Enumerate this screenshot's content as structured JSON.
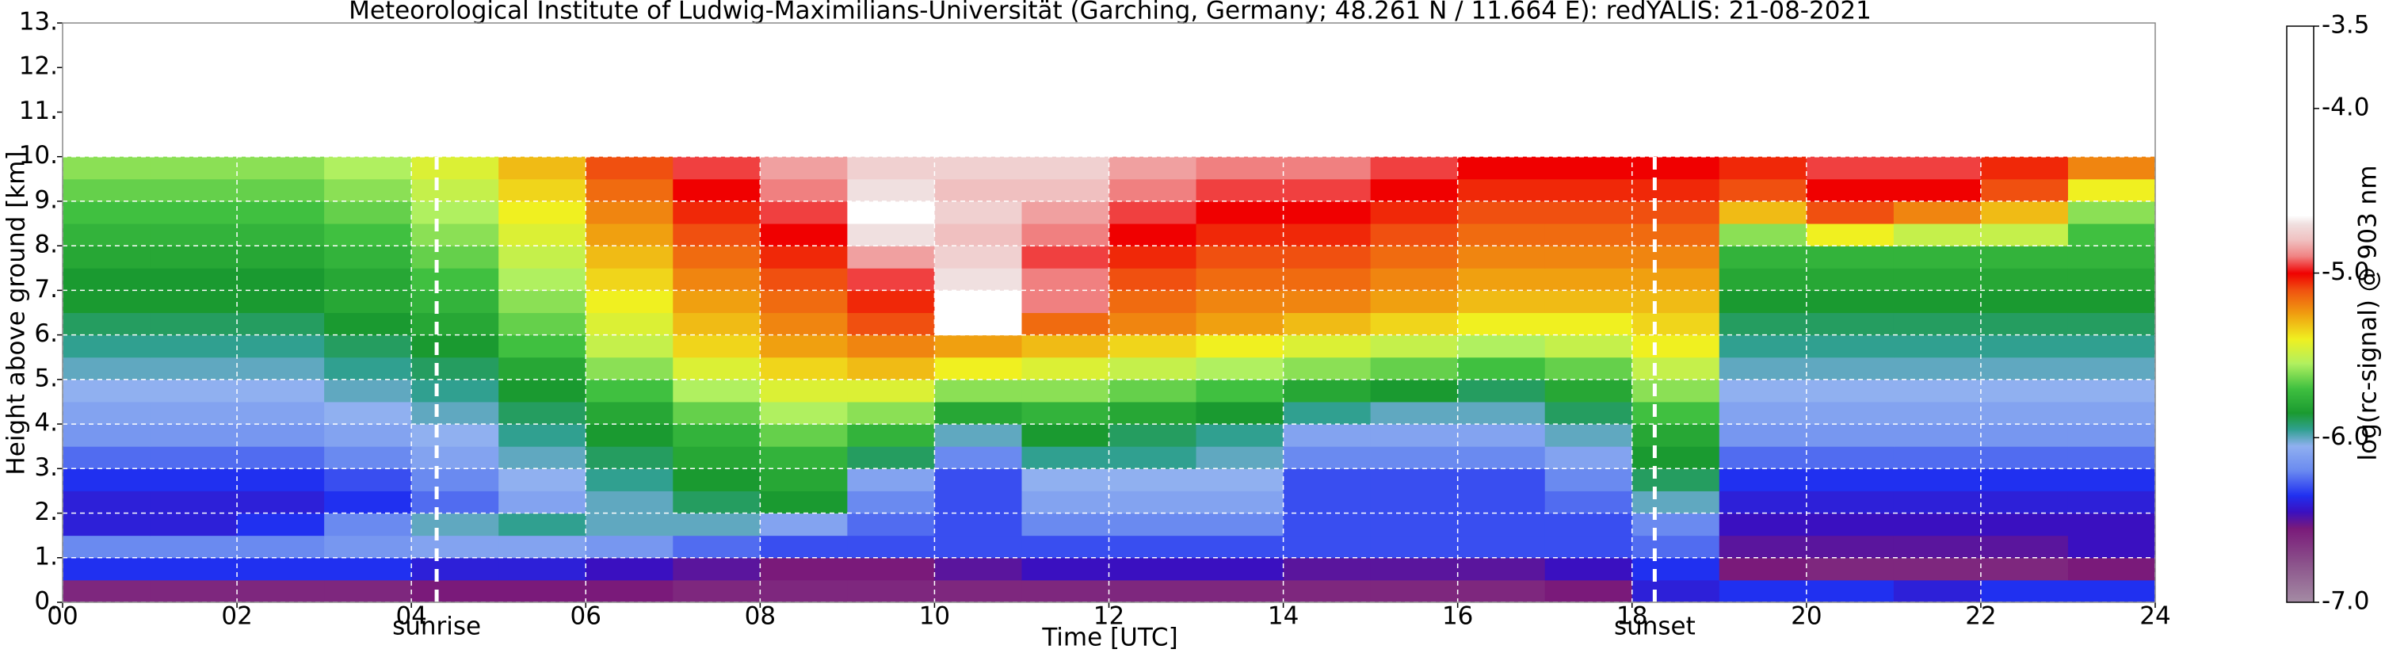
{
  "chart_data": {
    "type": "heatmap",
    "title": "Meteorological Institute of Ludwig-Maximilians-Universität (Garching, Germany; 48.261 N / 11.664 E):    redYALIS: 21-08-2021",
    "xlabel": "Time [UTC]",
    "ylabel": "Height above ground [km]",
    "xlim": [
      0,
      24
    ],
    "ylim": [
      0,
      13
    ],
    "xticks": [
      {
        "value": 0,
        "label": "00"
      },
      {
        "value": 2,
        "label": "02"
      },
      {
        "value": 4,
        "label": "04"
      },
      {
        "value": 6,
        "label": "06"
      },
      {
        "value": 8,
        "label": "08"
      },
      {
        "value": 10,
        "label": "10"
      },
      {
        "value": 12,
        "label": "12"
      },
      {
        "value": 14,
        "label": "14"
      },
      {
        "value": 16,
        "label": "16"
      },
      {
        "value": 18,
        "label": "18"
      },
      {
        "value": 20,
        "label": "20"
      },
      {
        "value": 22,
        "label": "22"
      },
      {
        "value": 24,
        "label": "24"
      }
    ],
    "yticks": [
      {
        "value": 0,
        "label": "0."
      },
      {
        "value": 1,
        "label": "1."
      },
      {
        "value": 2,
        "label": "2."
      },
      {
        "value": 3,
        "label": "3."
      },
      {
        "value": 4,
        "label": "4."
      },
      {
        "value": 5,
        "label": "5."
      },
      {
        "value": 6,
        "label": "6."
      },
      {
        "value": 7,
        "label": "7."
      },
      {
        "value": 8,
        "label": "8."
      },
      {
        "value": 9,
        "label": "9."
      },
      {
        "value": 10,
        "label": "10."
      },
      {
        "value": 11,
        "label": "11."
      },
      {
        "value": 12,
        "label": "12."
      },
      {
        "value": 13,
        "label": "13."
      }
    ],
    "grid": true,
    "annotations": [
      {
        "text": "sunrise",
        "x": 4.29
      },
      {
        "text": "sunset",
        "x": 18.26
      }
    ],
    "xbins": [
      0,
      1,
      2,
      3,
      4,
      5,
      6,
      7,
      8,
      9,
      10,
      11,
      12,
      13,
      14,
      15,
      16,
      17,
      18,
      19,
      20,
      21,
      22,
      23,
      24
    ],
    "ybins": [
      0,
      0.5,
      1,
      1.5,
      2,
      2.5,
      3,
      3.5,
      4,
      4.5,
      5,
      5.5,
      6,
      6.5,
      7,
      7.5,
      8,
      8.5,
      9,
      9.5,
      10
    ],
    "z": [
      [
        -6.6,
        -6.6,
        -6.6,
        -6.6,
        -6.55,
        -6.55,
        -6.55,
        -6.6,
        -6.6,
        -6.6,
        -6.6,
        -6.6,
        -6.6,
        -6.6,
        -6.6,
        -6.6,
        -6.6,
        -6.55,
        -6.4,
        -6.35,
        -6.35,
        -6.4,
        -6.35,
        -6.35
      ],
      [
        -6.35,
        -6.35,
        -6.35,
        -6.35,
        -6.4,
        -6.4,
        -6.45,
        -6.5,
        -6.55,
        -6.55,
        -6.5,
        -6.45,
        -6.45,
        -6.45,
        -6.5,
        -6.5,
        -6.5,
        -6.45,
        -6.35,
        -6.55,
        -6.6,
        -6.6,
        -6.6,
        -6.55
      ],
      [
        -6.2,
        -6.2,
        -6.2,
        -6.15,
        -6.1,
        -6.1,
        -6.15,
        -6.25,
        -6.3,
        -6.3,
        -6.3,
        -6.3,
        -6.3,
        -6.3,
        -6.3,
        -6.3,
        -6.3,
        -6.3,
        -6.25,
        -6.5,
        -6.5,
        -6.5,
        -6.5,
        -6.45
      ],
      [
        -6.4,
        -6.4,
        -6.35,
        -6.2,
        -6.0,
        -5.95,
        -6.0,
        -6.0,
        -6.1,
        -6.25,
        -6.3,
        -6.2,
        -6.2,
        -6.2,
        -6.3,
        -6.3,
        -6.3,
        -6.3,
        -6.2,
        -6.45,
        -6.45,
        -6.45,
        -6.45,
        -6.45
      ],
      [
        -6.4,
        -6.4,
        -6.4,
        -6.35,
        -6.25,
        -6.1,
        -6.0,
        -5.9,
        -5.85,
        -6.2,
        -6.3,
        -6.1,
        -6.1,
        -6.1,
        -6.3,
        -6.3,
        -6.3,
        -6.25,
        -6.0,
        -6.4,
        -6.4,
        -6.4,
        -6.4,
        -6.4
      ],
      [
        -6.35,
        -6.35,
        -6.35,
        -6.3,
        -6.2,
        -6.05,
        -5.95,
        -5.85,
        -5.8,
        -6.1,
        -6.3,
        -6.05,
        -6.05,
        -6.05,
        -6.3,
        -6.3,
        -6.3,
        -6.2,
        -5.9,
        -6.35,
        -6.35,
        -6.35,
        -6.35,
        -6.35
      ],
      [
        -6.25,
        -6.25,
        -6.25,
        -6.2,
        -6.1,
        -6.0,
        -5.9,
        -5.8,
        -5.75,
        -5.9,
        -6.2,
        -5.95,
        -5.95,
        -6.0,
        -6.2,
        -6.2,
        -6.2,
        -6.1,
        -5.85,
        -6.25,
        -6.25,
        -6.25,
        -6.25,
        -6.25
      ],
      [
        -6.15,
        -6.15,
        -6.15,
        -6.1,
        -6.05,
        -5.95,
        -5.85,
        -5.75,
        -5.65,
        -5.75,
        -6.0,
        -5.85,
        -5.9,
        -5.95,
        -6.1,
        -6.1,
        -6.1,
        -6.0,
        -5.8,
        -6.15,
        -6.15,
        -6.15,
        -6.15,
        -6.15
      ],
      [
        -6.1,
        -6.1,
        -6.1,
        -6.05,
        -6.0,
        -5.9,
        -5.8,
        -5.65,
        -5.55,
        -5.6,
        -5.8,
        -5.75,
        -5.8,
        -5.85,
        -5.95,
        -6.0,
        -6.0,
        -5.9,
        -5.7,
        -6.1,
        -6.1,
        -6.1,
        -6.1,
        -6.1
      ],
      [
        -6.05,
        -6.05,
        -6.05,
        -6.0,
        -5.95,
        -5.85,
        -5.7,
        -5.55,
        -5.45,
        -5.45,
        -5.6,
        -5.6,
        -5.65,
        -5.7,
        -5.8,
        -5.85,
        -5.9,
        -5.8,
        -5.6,
        -6.05,
        -6.05,
        -6.05,
        -6.05,
        -6.05
      ],
      [
        -6.0,
        -6.0,
        -6.0,
        -5.95,
        -5.9,
        -5.8,
        -5.6,
        -5.45,
        -5.35,
        -5.3,
        -5.4,
        -5.45,
        -5.5,
        -5.55,
        -5.6,
        -5.65,
        -5.7,
        -5.65,
        -5.5,
        -6.0,
        -6.0,
        -6.0,
        -6.0,
        -6.0
      ],
      [
        -5.95,
        -5.95,
        -5.95,
        -5.9,
        -5.85,
        -5.7,
        -5.5,
        -5.35,
        -5.25,
        -5.2,
        -5.25,
        -5.3,
        -5.35,
        -5.4,
        -5.45,
        -5.5,
        -5.55,
        -5.5,
        -5.4,
        -5.95,
        -5.95,
        -5.95,
        -5.95,
        -5.95
      ],
      [
        -5.9,
        -5.9,
        -5.9,
        -5.85,
        -5.8,
        -5.65,
        -5.45,
        -5.3,
        -5.2,
        -5.1,
        -4.6,
        -5.15,
        -5.2,
        -5.25,
        -5.3,
        -5.35,
        -5.4,
        -5.4,
        -5.35,
        -5.9,
        -5.9,
        -5.9,
        -5.9,
        -5.9
      ],
      [
        -5.85,
        -5.85,
        -5.85,
        -5.8,
        -5.75,
        -5.6,
        -5.4,
        -5.25,
        -5.15,
        -5.05,
        -4.6,
        -4.9,
        -5.15,
        -5.2,
        -5.2,
        -5.25,
        -5.3,
        -5.3,
        -5.3,
        -5.85,
        -5.85,
        -5.85,
        -5.85,
        -5.85
      ],
      [
        -5.85,
        -5.85,
        -5.85,
        -5.8,
        -5.7,
        -5.55,
        -5.35,
        -5.2,
        -5.1,
        -4.95,
        -4.7,
        -4.9,
        -5.1,
        -5.15,
        -5.15,
        -5.2,
        -5.25,
        -5.25,
        -5.25,
        -5.8,
        -5.8,
        -5.8,
        -5.8,
        -5.8
      ],
      [
        -5.8,
        -5.8,
        -5.8,
        -5.75,
        -5.65,
        -5.5,
        -5.3,
        -5.15,
        -5.05,
        -4.85,
        -4.75,
        -4.95,
        -5.05,
        -5.1,
        -5.1,
        -5.15,
        -5.2,
        -5.2,
        -5.2,
        -5.75,
        -5.75,
        -5.75,
        -5.75,
        -5.75
      ],
      [
        -5.75,
        -5.75,
        -5.75,
        -5.7,
        -5.6,
        -5.45,
        -5.25,
        -5.1,
        -5.0,
        -4.7,
        -4.8,
        -4.9,
        -5.0,
        -5.05,
        -5.05,
        -5.1,
        -5.15,
        -5.15,
        -5.15,
        -5.6,
        -5.4,
        -5.5,
        -5.5,
        -5.7
      ],
      [
        -5.7,
        -5.7,
        -5.7,
        -5.65,
        -5.55,
        -5.4,
        -5.2,
        -5.05,
        -4.95,
        -4.6,
        -4.75,
        -4.85,
        -4.95,
        -5.0,
        -5.0,
        -5.05,
        -5.1,
        -5.1,
        -5.1,
        -5.3,
        -5.1,
        -5.2,
        -5.3,
        -5.6
      ],
      [
        -5.65,
        -5.65,
        -5.65,
        -5.6,
        -5.5,
        -5.35,
        -5.15,
        -5.0,
        -4.9,
        -4.7,
        -4.8,
        -4.8,
        -4.9,
        -4.95,
        -4.95,
        -5.0,
        -5.05,
        -5.05,
        -5.05,
        -5.1,
        -5.0,
        -5.0,
        -5.1,
        -5.4
      ],
      [
        -5.6,
        -5.6,
        -5.6,
        -5.55,
        -5.45,
        -5.3,
        -5.1,
        -4.95,
        -4.85,
        -4.75,
        -4.75,
        -4.75,
        -4.85,
        -4.9,
        -4.9,
        -4.95,
        -5.0,
        -5.0,
        -5.0,
        -5.05,
        -4.95,
        -4.95,
        -5.05,
        -5.2
      ]
    ],
    "colorbar": {
      "label": "log(rc-signal) @ 903 nm",
      "lim": [
        -7,
        -3.5
      ],
      "ticks": [
        {
          "value": -7,
          "label": "-7.0"
        },
        {
          "value": -6,
          "label": "-6.0"
        },
        {
          "value": -5,
          "label": "-5.0"
        },
        {
          "value": -4,
          "label": "-4.0"
        },
        -3.5
      ],
      "stops": [
        -7.0,
        -6.75,
        -6.55,
        -6.45,
        -6.35,
        -6.2,
        -6.05,
        -5.95,
        -5.85,
        -5.7,
        -5.55,
        -5.4,
        -5.25,
        -5.1,
        -5.0,
        -4.9,
        -4.8,
        -4.7,
        -4.65,
        -3.5
      ],
      "colors": [
        "#a48ca4",
        "#8a4f8a",
        "#7a1a7a",
        "#3a10c0",
        "#2030f0",
        "#6a8af0",
        "#90b0f0",
        "#30a090",
        "#1a9a30",
        "#40c040",
        "#b0f060",
        "#f0f020",
        "#f0a010",
        "#f05010",
        "#f00000",
        "#f08080",
        "#f0c0c0",
        "#f0e0e0",
        "#ffffff",
        "#ffffff"
      ]
    }
  }
}
